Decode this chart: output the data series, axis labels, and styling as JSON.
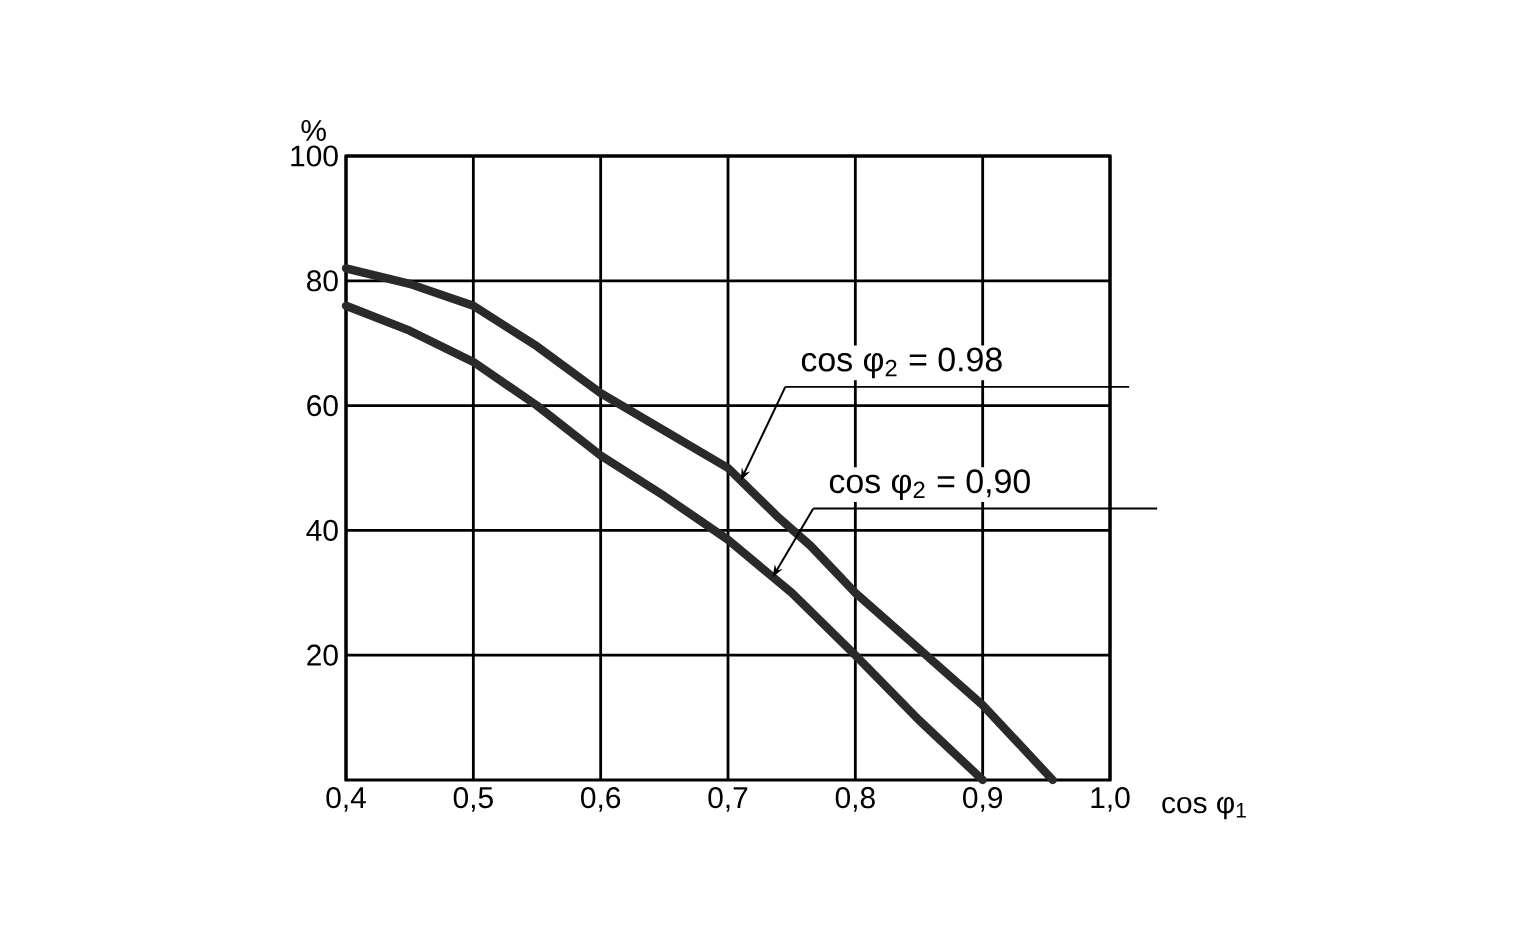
{
  "chart_data": {
    "type": "line",
    "xlabel": "cos φ$_{1}$",
    "ylabel": "%",
    "series": [
      {
        "color": "#2a2a2a",
        "x": [
          0.4,
          0.45,
          0.5,
          0.55,
          0.6,
          0.65,
          0.7,
          0.74,
          0.765,
          0.8,
          0.85,
          0.9,
          0.955
        ],
        "values": [
          82,
          79.5,
          76,
          69.5,
          62,
          56,
          50,
          42,
          37.5,
          30,
          21,
          12,
          0
        ]
      },
      {
        "color": "#2a2a2a",
        "x": [
          0.4,
          0.45,
          0.5,
          0.55,
          0.6,
          0.65,
          0.7,
          0.75,
          0.8,
          0.85,
          0.9
        ],
        "values": [
          76,
          72,
          67,
          60,
          52,
          45.5,
          38.5,
          30,
          20,
          9.6,
          0
        ]
      }
    ],
    "xlim": [
      0.4,
      1.0
    ],
    "ylim": [
      0,
      100
    ],
    "xticks": [
      {
        "value": 0.4,
        "label": "0,4"
      },
      {
        "value": 0.5,
        "label": "0,5"
      },
      {
        "value": 0.6,
        "label": "0,6"
      },
      {
        "value": 0.7,
        "label": "0,7"
      },
      {
        "value": 0.8,
        "label": "0,8"
      },
      {
        "value": 0.9,
        "label": "0,9"
      },
      {
        "value": 1.0,
        "label": "1,0"
      }
    ],
    "yticks": [
      20,
      40,
      60,
      80,
      100
    ],
    "grid": true,
    "line_style": "solid",
    "marker": "none",
    "annotations": [
      {
        "text": "cos φ$_{2}$ = 0.98",
        "x": 0.71,
        "y": 48
      },
      {
        "text": "cos φ$_{2}$ = 0,90",
        "x": 0.735,
        "y": 32.5
      }
    ]
  }
}
